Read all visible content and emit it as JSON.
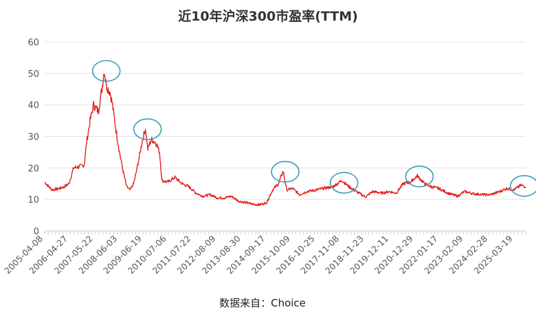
{
  "chart_data": {
    "type": "line",
    "title": "近10年沪深300市盈率(TTM)",
    "source": "数据来自：Choice",
    "xlabel": "",
    "ylabel": "",
    "ylim": [
      0,
      60
    ],
    "yticks": [
      "0",
      "10",
      "20",
      "30",
      "40",
      "50",
      "60"
    ],
    "xlim_years": [
      2005.27,
      2025.7
    ],
    "grid": true,
    "x_tick_labels": [
      "2005-04-08",
      "2006-04-27",
      "2007-05-22",
      "2008-06-03",
      "2009-06-19",
      "2010-07-06",
      "2011-07-22",
      "2012-08-09",
      "2013-08-30",
      "2014-09-17",
      "2015-10-09",
      "2016-10-25",
      "2017-11-08",
      "2018-11-23",
      "2019-12-11",
      "2020-12-29",
      "2022-01-17",
      "2023-02-09",
      "2024-02-28",
      "2025-03-19"
    ],
    "series": [
      {
        "name": "沪深300市盈率(TTM)",
        "color": "#e0201b",
        "points": [
          [
            2005.27,
            15.5
          ],
          [
            2005.45,
            14
          ],
          [
            2005.6,
            13
          ],
          [
            2005.9,
            13.5
          ],
          [
            2006.1,
            14
          ],
          [
            2006.3,
            15
          ],
          [
            2006.5,
            20
          ],
          [
            2006.8,
            20.5
          ],
          [
            2006.95,
            21
          ],
          [
            2007.05,
            28
          ],
          [
            2007.2,
            35
          ],
          [
            2007.35,
            40
          ],
          [
            2007.55,
            38
          ],
          [
            2007.7,
            45
          ],
          [
            2007.8,
            51
          ],
          [
            2007.9,
            46
          ],
          [
            2008.05,
            44
          ],
          [
            2008.15,
            40
          ],
          [
            2008.3,
            32
          ],
          [
            2008.45,
            25
          ],
          [
            2008.6,
            19
          ],
          [
            2008.75,
            14
          ],
          [
            2008.9,
            13
          ],
          [
            2009.05,
            15
          ],
          [
            2009.2,
            20
          ],
          [
            2009.4,
            28
          ],
          [
            2009.55,
            32.5
          ],
          [
            2009.65,
            26
          ],
          [
            2009.8,
            29
          ],
          [
            2010.0,
            28
          ],
          [
            2010.15,
            25
          ],
          [
            2010.25,
            16
          ],
          [
            2010.5,
            15.5
          ],
          [
            2010.8,
            17
          ],
          [
            2011.1,
            15
          ],
          [
            2011.4,
            14
          ],
          [
            2011.7,
            12
          ],
          [
            2012.0,
            11
          ],
          [
            2012.3,
            11.5
          ],
          [
            2012.6,
            10.5
          ],
          [
            2012.9,
            10.5
          ],
          [
            2013.2,
            11
          ],
          [
            2013.5,
            9.5
          ],
          [
            2013.8,
            9
          ],
          [
            2014.1,
            8.5
          ],
          [
            2014.4,
            8.3
          ],
          [
            2014.7,
            9
          ],
          [
            2014.95,
            13
          ],
          [
            2015.2,
            15
          ],
          [
            2015.4,
            19
          ],
          [
            2015.55,
            13
          ],
          [
            2015.8,
            13.5
          ],
          [
            2016.1,
            11.5
          ],
          [
            2016.4,
            12.5
          ],
          [
            2016.8,
            13
          ],
          [
            2017.1,
            13.5
          ],
          [
            2017.5,
            14
          ],
          [
            2017.9,
            16
          ],
          [
            2018.2,
            14
          ],
          [
            2018.5,
            12.5
          ],
          [
            2018.9,
            10.8
          ],
          [
            2019.2,
            12.5
          ],
          [
            2019.6,
            12
          ],
          [
            2019.9,
            12.5
          ],
          [
            2020.2,
            12
          ],
          [
            2020.5,
            15
          ],
          [
            2020.8,
            15.5
          ],
          [
            2021.1,
            17.5
          ],
          [
            2021.4,
            15
          ],
          [
            2021.7,
            14
          ],
          [
            2022.0,
            13.5
          ],
          [
            2022.4,
            12
          ],
          [
            2022.8,
            11
          ],
          [
            2023.1,
            12.5
          ],
          [
            2023.5,
            11.8
          ],
          [
            2023.9,
            11.5
          ],
          [
            2024.2,
            11.5
          ],
          [
            2024.6,
            12.5
          ],
          [
            2024.9,
            13.5
          ],
          [
            2025.2,
            13
          ],
          [
            2025.5,
            14.5
          ],
          [
            2025.7,
            14
          ]
        ]
      }
    ],
    "annotations": {
      "type": "circle",
      "color": "#3a9cb8",
      "at": [
        [
          2007.8,
          51
        ],
        [
          2009.55,
          32.5
        ],
        [
          2015.4,
          19
        ],
        [
          2017.9,
          15.5
        ],
        [
          2021.1,
          17.5
        ],
        [
          2025.55,
          14.5
        ]
      ]
    }
  }
}
